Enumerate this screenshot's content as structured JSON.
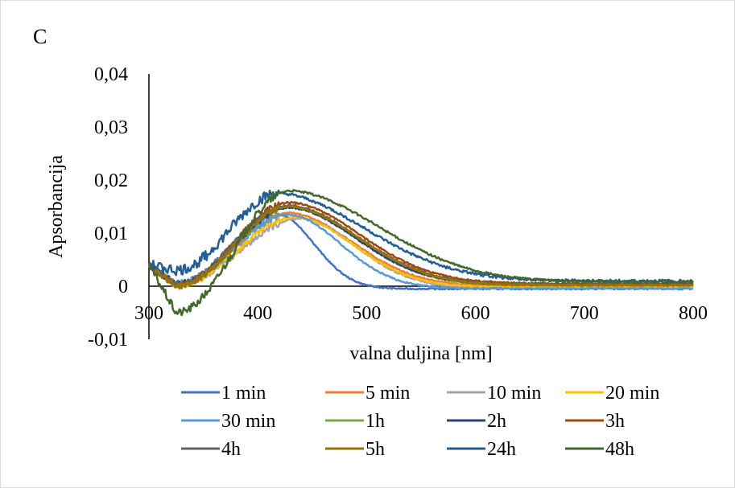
{
  "panel_label": "C",
  "chart_data": {
    "type": "line",
    "title": "",
    "xlabel": "valna duljina [nm]",
    "ylabel": "Apsorbancija",
    "xlim": [
      300,
      800
    ],
    "ylim": [
      -0.01,
      0.04
    ],
    "x_ticks": [
      300,
      400,
      500,
      600,
      700,
      800
    ],
    "x_tick_labels": [
      "300",
      "400",
      "500",
      "600",
      "700",
      "800"
    ],
    "y_ticks": [
      -0.01,
      0,
      0.01,
      0.02,
      0.03,
      0.04
    ],
    "y_tick_labels": [
      "-0,01",
      "0",
      "0,01",
      "0,02",
      "0,03",
      "0,04"
    ],
    "grid": false,
    "legend_position": "bottom",
    "series": [
      {
        "name": "1 min",
        "color": "#4472C4",
        "peak_x": 420,
        "peak_y": 0.0135,
        "dip_y": 0.0005,
        "tail_end": -0.0005,
        "decay": 45,
        "noise": 0.001
      },
      {
        "name": "5 min",
        "color": "#ED7D31",
        "peak_x": 430,
        "peak_y": 0.0138,
        "dip_y": 0.0002,
        "tail_end": 0.0,
        "decay": 80,
        "noise": 0.0012
      },
      {
        "name": "10 min",
        "color": "#A5A5A5",
        "peak_x": 440,
        "peak_y": 0.0128,
        "dip_y": 0.0004,
        "tail_end": -0.0003,
        "decay": 70,
        "noise": 0.0012
      },
      {
        "name": "20 min",
        "color": "#FFC000",
        "peak_x": 435,
        "peak_y": 0.013,
        "dip_y": 0.0001,
        "tail_end": -0.0002,
        "decay": 75,
        "noise": 0.0012
      },
      {
        "name": "30 min",
        "color": "#5B9BD5",
        "peak_x": 430,
        "peak_y": 0.0135,
        "dip_y": 0.0005,
        "tail_end": -0.0004,
        "decay": 65,
        "noise": 0.0012
      },
      {
        "name": "1h",
        "color": "#70AD47",
        "peak_x": 430,
        "peak_y": 0.015,
        "dip_y": 0.0003,
        "tail_end": 0.0002,
        "decay": 85,
        "noise": 0.0012
      },
      {
        "name": "2h",
        "color": "#264478",
        "peak_x": 430,
        "peak_y": 0.0148,
        "dip_y": 0.0004,
        "tail_end": 0.0003,
        "decay": 85,
        "noise": 0.0012
      },
      {
        "name": "3h",
        "color": "#9E480E",
        "peak_x": 430,
        "peak_y": 0.0158,
        "dip_y": 0.0002,
        "tail_end": 0.0005,
        "decay": 90,
        "noise": 0.0012
      },
      {
        "name": "4h",
        "color": "#636363",
        "peak_x": 430,
        "peak_y": 0.0152,
        "dip_y": 0.0003,
        "tail_end": 0.0003,
        "decay": 88,
        "noise": 0.0012
      },
      {
        "name": "5h",
        "color": "#997300",
        "peak_x": 430,
        "peak_y": 0.015,
        "dip_y": 0.0,
        "tail_end": 0.0002,
        "decay": 88,
        "noise": 0.0012
      },
      {
        "name": "24h",
        "color": "#255E91",
        "peak_x": 420,
        "peak_y": 0.0175,
        "dip_y": 0.003,
        "tail_end": 0.001,
        "decay": 110,
        "noise": 0.002
      },
      {
        "name": "48h",
        "color": "#43682B",
        "peak_x": 430,
        "peak_y": 0.018,
        "dip_y": -0.005,
        "tail_end": 0.0008,
        "decay": 115,
        "noise": 0.0015
      }
    ]
  }
}
